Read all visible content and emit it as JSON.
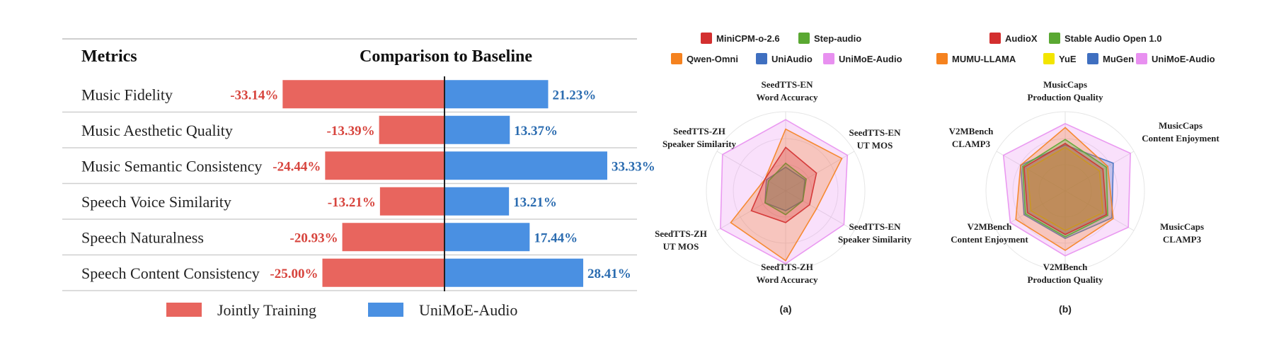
{
  "chart_data": [
    {
      "type": "bar",
      "orientation": "horizontal-diverging",
      "column_headers": {
        "metrics": "Metrics",
        "comparison": "Comparison to Baseline"
      },
      "categories": [
        "Music Fidelity",
        "Music Aesthetic Quality",
        "Music Semantic Consistency",
        "Speech Voice Similarity",
        "Speech Naturalness",
        "Speech Content Consistency"
      ],
      "series": [
        {
          "name": "Jointly Training",
          "color": "#e8655e",
          "values": [
            -33.14,
            -13.39,
            -24.44,
            -13.21,
            -20.93,
            -25.0
          ],
          "labels": [
            "-33.14%",
            "-13.39%",
            "-24.44%",
            "-13.21%",
            "-20.93%",
            "-25.00%"
          ],
          "label_color": "#d7443d"
        },
        {
          "name": "UniMoE-Audio",
          "color": "#4a90e2",
          "values": [
            21.23,
            13.37,
            33.33,
            13.21,
            17.44,
            28.41
          ],
          "labels": [
            "21.23%",
            "13.37%",
            "33.33%",
            "13.21%",
            "17.44%",
            "28.41%"
          ],
          "label_color": "#2b6cb0"
        }
      ],
      "legend_position": "bottom"
    },
    {
      "type": "radar",
      "caption": "(a)",
      "axes": [
        "SeedTTS-EN\nWord Accuracy",
        "SeedTTS-EN\nUT MOS",
        "SeedTTS-EN\nSpeaker Similarity",
        "SeedTTS-ZH\nWord Accuracy",
        "SeedTTS-ZH\nUT MOS",
        "SeedTTS-ZH\nSpeaker Similarity"
      ],
      "range": [
        0,
        1
      ],
      "series": [
        {
          "name": "MiniCPM-o-2.6",
          "color": "#d32f2f",
          "values": [
            0.55,
            0.45,
            0.35,
            0.4,
            0.5,
            0.3
          ]
        },
        {
          "name": "Step-audio",
          "color": "#5aa832",
          "values": [
            0.35,
            0.3,
            0.25,
            0.3,
            0.3,
            0.25
          ]
        },
        {
          "name": "Qwen-Omni",
          "color": "#f5821f",
          "values": [
            0.78,
            0.82,
            0.45,
            0.88,
            0.8,
            0.3
          ]
        },
        {
          "name": "UniAudio",
          "color": "#3f6fc0",
          "values": [
            0.3,
            0.28,
            0.25,
            0.25,
            0.3,
            0.28
          ]
        },
        {
          "name": "UniMoE-Audio",
          "color": "#e890f0",
          "values": [
            0.9,
            0.9,
            0.85,
            0.92,
            0.95,
            0.92
          ]
        }
      ],
      "legend_position": "top"
    },
    {
      "type": "radar",
      "caption": "(b)",
      "axes": [
        "MusicCaps\nProduction Quality",
        "MusicCaps\nContent Enjoyment",
        "MusicCaps\nCLAMP3",
        "V2MBench\nProduction Quality",
        "V2MBench\nContent Enjoyment",
        "V2MBench\nCLAMP3"
      ],
      "range": [
        0,
        1
      ],
      "series": [
        {
          "name": "AudioX",
          "color": "#d32f2f",
          "values": [
            0.6,
            0.55,
            0.6,
            0.55,
            0.55,
            0.6
          ]
        },
        {
          "name": "Stable Audio Open 1.0",
          "color": "#5aa832",
          "values": [
            0.65,
            0.6,
            0.62,
            0.58,
            0.58,
            0.62
          ]
        },
        {
          "name": "MUMU-LLAMA",
          "color": "#f5821f",
          "values": [
            0.8,
            0.62,
            0.7,
            0.75,
            0.72,
            0.65
          ]
        },
        {
          "name": "YuE",
          "color": "#f3e500",
          "values": [
            0.55,
            0.5,
            0.55,
            0.5,
            0.5,
            0.55
          ]
        },
        {
          "name": "MuGen",
          "color": "#3f6fc0",
          "values": [
            0.58,
            0.7,
            0.68,
            0.6,
            0.6,
            0.65
          ]
        },
        {
          "name": "UniMoE-Audio",
          "color": "#e890f0",
          "values": [
            0.85,
            0.95,
            0.92,
            0.82,
            0.8,
            0.9
          ]
        }
      ],
      "legend_position": "top"
    }
  ]
}
